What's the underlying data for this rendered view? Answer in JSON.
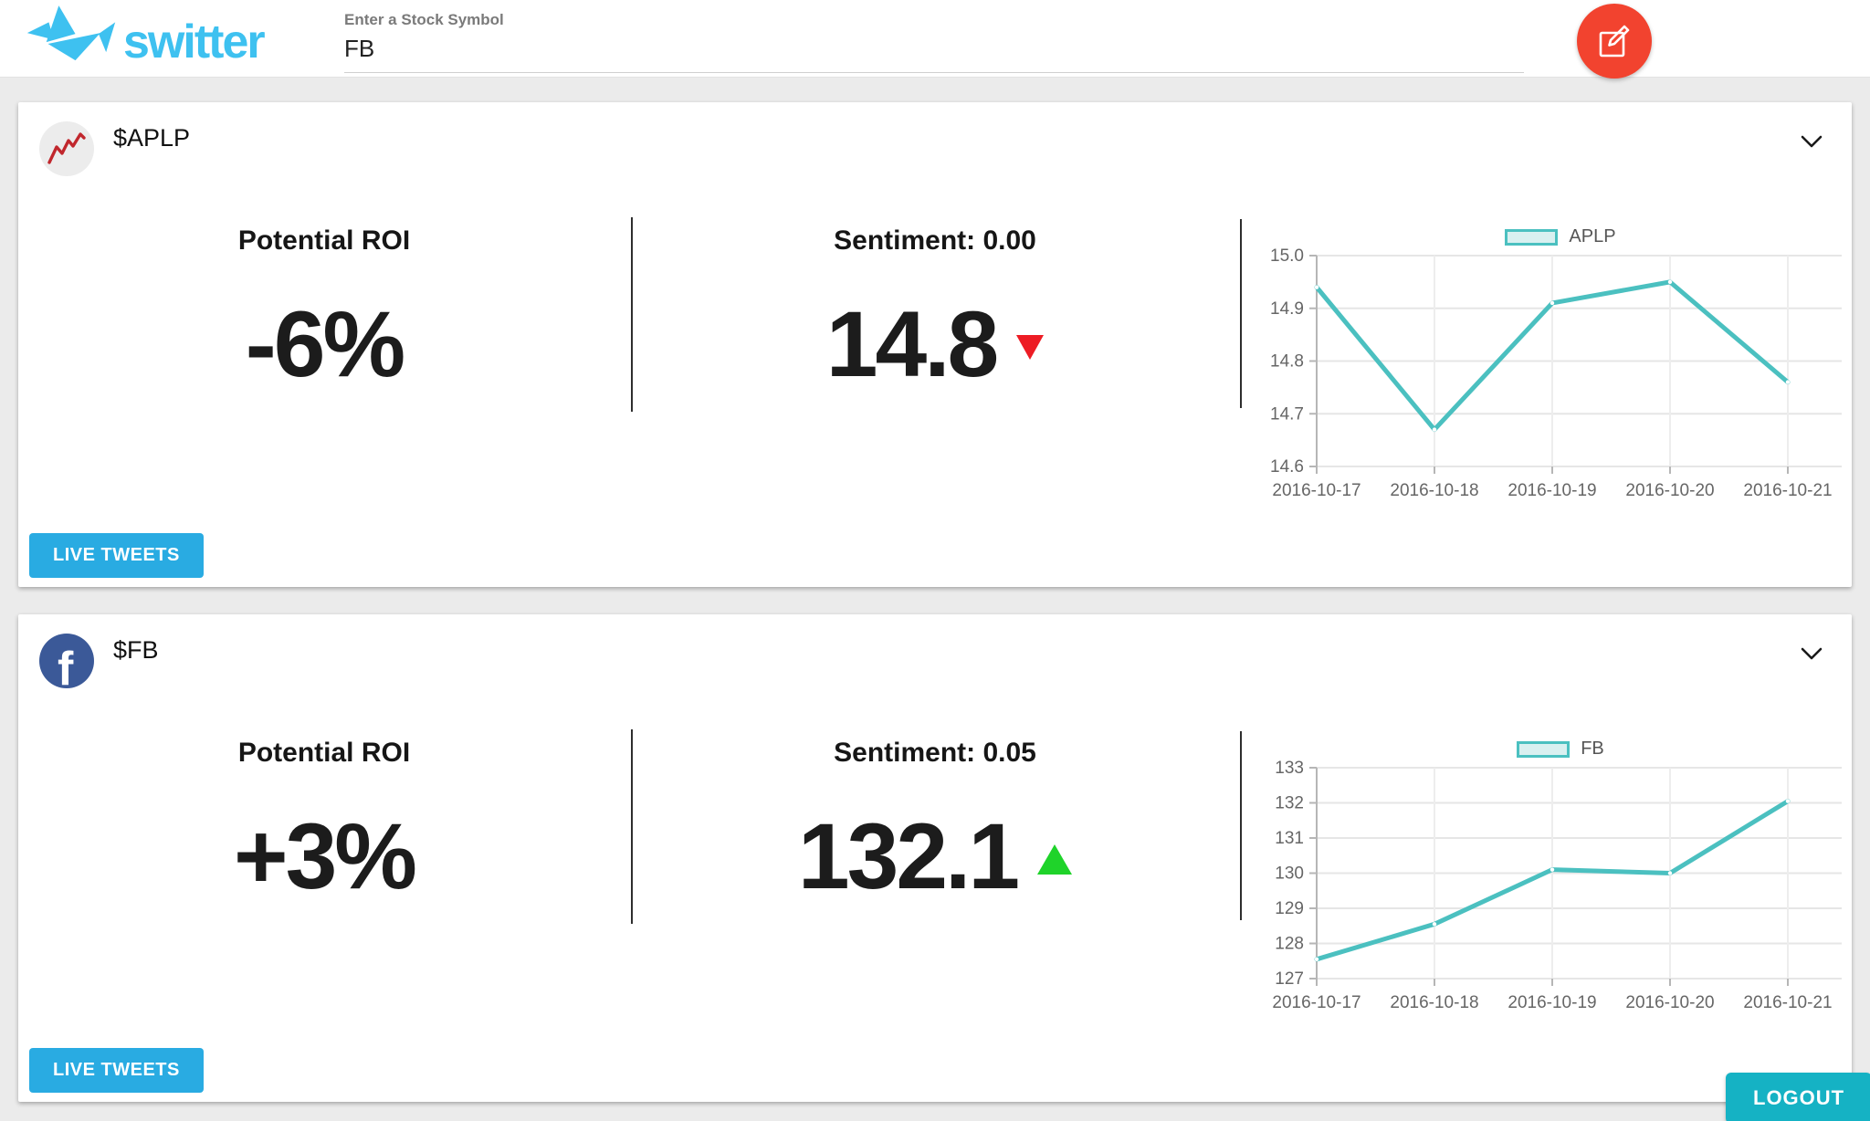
{
  "header": {
    "brand": "switter",
    "stock_input": {
      "label": "Enter a Stock Symbol",
      "value": "FB"
    }
  },
  "cards": [
    {
      "symbol": "$APLP",
      "avatar_icon": "sparkline-icon",
      "roi": {
        "label": "Potential ROI",
        "value": "-6%"
      },
      "sentiment": {
        "label": "Sentiment: 0.00",
        "price": "14.8",
        "direction": "down"
      },
      "live_tweets_label": "LIVE TWEETS"
    },
    {
      "symbol": "$FB",
      "avatar_icon": "facebook-icon",
      "roi": {
        "label": "Potential ROI",
        "value": "+3%"
      },
      "sentiment": {
        "label": "Sentiment: 0.05",
        "price": "132.1",
        "direction": "up"
      },
      "live_tweets_label": "LIVE TWEETS"
    }
  ],
  "logout_label": "LOGOUT",
  "icons": {
    "logo": "crane-logo-icon",
    "header_action": "compose-icon",
    "card_collapse": "chevron-down-icon",
    "price_down": "triangle-down-icon",
    "price_up": "triangle-up-icon"
  },
  "colors": {
    "brand_blue": "#3EC1F0",
    "fab_red": "#F2432F",
    "live_tweets_blue": "#29ABE2",
    "logout_teal": "#15B2C4",
    "chart_teal": "#4BC0C0",
    "up_green": "#1FD32A",
    "down_red": "#ED1C24",
    "facebook_blue": "#3B5998"
  },
  "chart_data": [
    {
      "type": "line",
      "title": "APLP",
      "x": [
        "2016-10-17",
        "2016-10-18",
        "2016-10-19",
        "2016-10-20",
        "2016-10-21"
      ],
      "series": [
        {
          "name": "APLP",
          "values": [
            14.94,
            14.67,
            14.91,
            14.95,
            14.76
          ]
        }
      ],
      "ylim": [
        14.6,
        15.0
      ],
      "ytick_step": 0.1,
      "ytick_decimals": 1,
      "legend_position": "top",
      "grid": true,
      "line_color": "#4BC0C0"
    },
    {
      "type": "line",
      "title": "FB",
      "x": [
        "2016-10-17",
        "2016-10-18",
        "2016-10-19",
        "2016-10-20",
        "2016-10-21"
      ],
      "series": [
        {
          "name": "FB",
          "values": [
            127.55,
            128.55,
            130.1,
            130.0,
            132.05
          ]
        }
      ],
      "ylim": [
        127,
        133
      ],
      "ytick_step": 1,
      "ytick_decimals": 0,
      "legend_position": "top",
      "grid": true,
      "line_color": "#4BC0C0"
    }
  ]
}
